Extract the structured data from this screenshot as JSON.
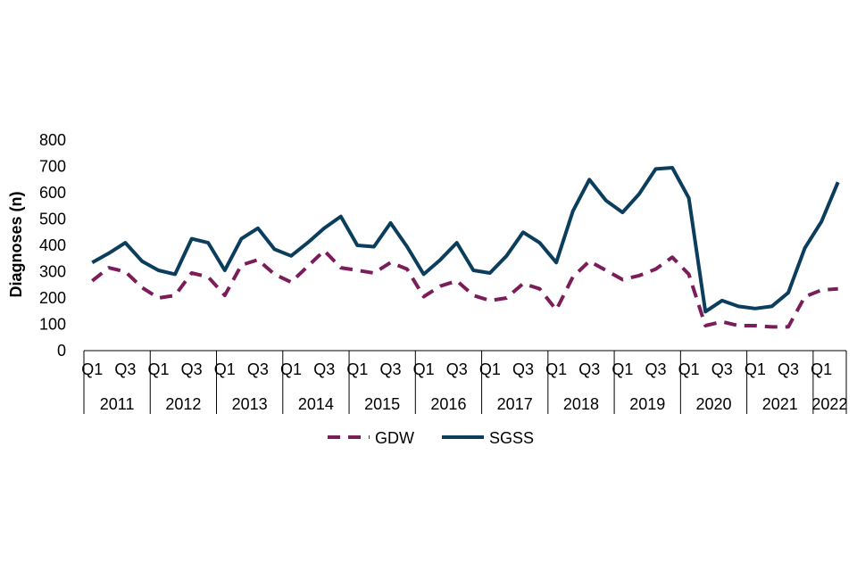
{
  "chart_data": {
    "type": "line",
    "title": "",
    "xlabel": "",
    "ylabel": "Diagnoses (n)",
    "ylim": [
      0,
      800
    ],
    "yticks": [
      0,
      100,
      200,
      300,
      400,
      500,
      600,
      700,
      800
    ],
    "grid": false,
    "legend_position": "bottom-center",
    "quarter_labels": [
      "Q1",
      "Q3"
    ],
    "years": [
      "2011",
      "2012",
      "2013",
      "2014",
      "2015",
      "2016",
      "2017",
      "2018",
      "2019",
      "2020",
      "2021",
      "2022"
    ],
    "quarters_per_year": [
      4,
      4,
      4,
      4,
      4,
      4,
      4,
      4,
      4,
      4,
      4,
      2
    ],
    "series": [
      {
        "name": "GDW",
        "color": "#7a1e5a",
        "dash": "dashed",
        "values": [
          265,
          315,
          300,
          240,
          200,
          210,
          295,
          280,
          210,
          325,
          345,
          290,
          260,
          320,
          380,
          315,
          305,
          295,
          335,
          310,
          205,
          245,
          265,
          210,
          190,
          200,
          255,
          235,
          155,
          280,
          340,
          305,
          270,
          285,
          310,
          355,
          290,
          95,
          110,
          95,
          95,
          90,
          90,
          205,
          230,
          235
        ]
      },
      {
        "name": "SGSS",
        "color": "#0b3d5c",
        "dash": "solid",
        "values": [
          335,
          370,
          410,
          340,
          305,
          290,
          425,
          410,
          305,
          425,
          465,
          385,
          360,
          410,
          465,
          510,
          400,
          395,
          485,
          395,
          290,
          345,
          410,
          305,
          295,
          360,
          450,
          410,
          335,
          530,
          650,
          570,
          525,
          595,
          690,
          695,
          580,
          148,
          190,
          168,
          160,
          168,
          220,
          390,
          490,
          640
        ]
      }
    ]
  }
}
